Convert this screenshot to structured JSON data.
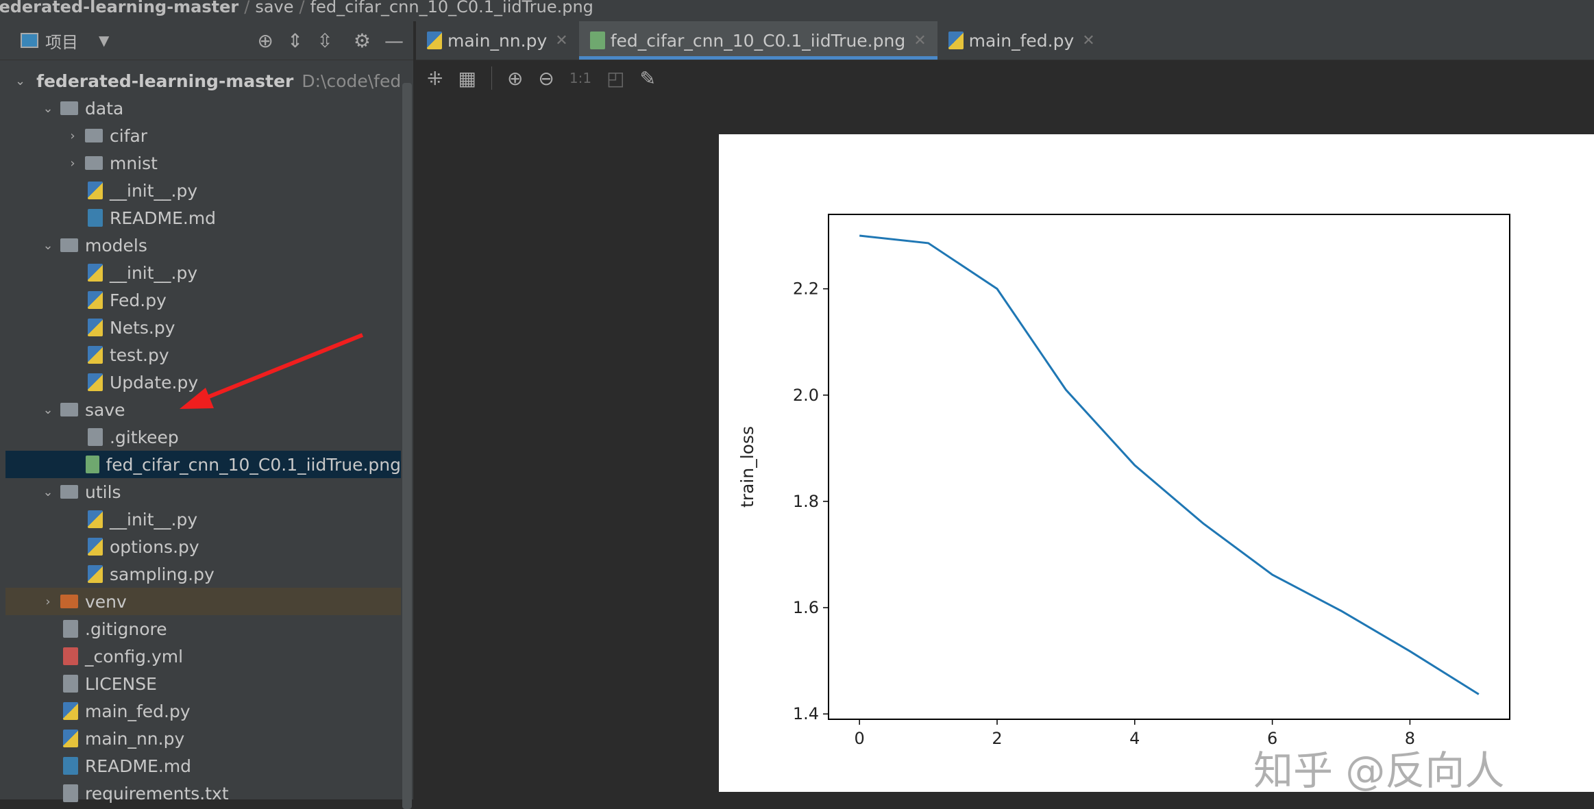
{
  "breadcrumb": [
    "federated-learning-master",
    "save",
    "fed_cifar_cnn_10_C0.1_iidTrue.png"
  ],
  "sidebar": {
    "title": "项目",
    "root_path": "D:\\code\\federat",
    "items": [
      {
        "label": "federated-learning-master",
        "level": 0,
        "type": "folder",
        "open": true
      },
      {
        "label": "data",
        "level": 1,
        "type": "folder",
        "open": true
      },
      {
        "label": "cifar",
        "level": 2,
        "type": "folder",
        "open": false
      },
      {
        "label": "mnist",
        "level": 2,
        "type": "folder",
        "open": false
      },
      {
        "label": "__init__.py",
        "level": 2,
        "type": "py"
      },
      {
        "label": "README.md",
        "level": 2,
        "type": "md"
      },
      {
        "label": "models",
        "level": 1,
        "type": "folder",
        "open": true
      },
      {
        "label": "__init__.py",
        "level": 2,
        "type": "py"
      },
      {
        "label": "Fed.py",
        "level": 2,
        "type": "py"
      },
      {
        "label": "Nets.py",
        "level": 2,
        "type": "py"
      },
      {
        "label": "test.py",
        "level": 2,
        "type": "py"
      },
      {
        "label": "Update.py",
        "level": 2,
        "type": "py"
      },
      {
        "label": "save",
        "level": 1,
        "type": "folder",
        "open": true
      },
      {
        "label": ".gitkeep",
        "level": 2,
        "type": "txt"
      },
      {
        "label": "fed_cifar_cnn_10_C0.1_iidTrue.png",
        "level": 2,
        "type": "img",
        "selected": true
      },
      {
        "label": "utils",
        "level": 1,
        "type": "folder",
        "open": true
      },
      {
        "label": "__init__.py",
        "level": 2,
        "type": "py"
      },
      {
        "label": "options.py",
        "level": 2,
        "type": "py"
      },
      {
        "label": "sampling.py",
        "level": 2,
        "type": "py"
      },
      {
        "label": "venv",
        "level": 1,
        "type": "folder-excluded",
        "open": false
      },
      {
        "label": ".gitignore",
        "level": 1,
        "type": "txt"
      },
      {
        "label": "_config.yml",
        "level": 1,
        "type": "yml"
      },
      {
        "label": "LICENSE",
        "level": 1,
        "type": "txt"
      },
      {
        "label": "main_fed.py",
        "level": 1,
        "type": "py"
      },
      {
        "label": "main_nn.py",
        "level": 1,
        "type": "py"
      },
      {
        "label": "README.md",
        "level": 1,
        "type": "md"
      },
      {
        "label": "requirements.txt",
        "level": 1,
        "type": "txt"
      }
    ]
  },
  "tabs": [
    {
      "label": "main_nn.py",
      "icon": "python-file-icon"
    },
    {
      "label": "fed_cifar_cnn_10_C0.1_iidTrue.png",
      "icon": "image-file-icon",
      "active": true
    },
    {
      "label": "main_fed.py",
      "icon": "python-file-icon"
    }
  ],
  "toolbar": {
    "actual_size": "1:1"
  },
  "watermark": "知乎 @反向人",
  "chart_data": {
    "type": "line",
    "title": "",
    "xlabel": "",
    "ylabel": "train_loss",
    "x": [
      0,
      1,
      2,
      3,
      4,
      5,
      6,
      7,
      8,
      9
    ],
    "series": [
      {
        "values": [
          2.3,
          2.286,
          2.2,
          2.01,
          1.868,
          1.758,
          1.662,
          1.594,
          1.518,
          1.437
        ],
        "color": "#1f77b4"
      }
    ],
    "xticks": [
      "0",
      "2",
      "4",
      "6",
      "8"
    ],
    "xtick_values": [
      0,
      2,
      4,
      6,
      8
    ],
    "yticks": [
      "1.4",
      "1.6",
      "1.8",
      "2.0",
      "2.2"
    ],
    "ytick_values": [
      1.4,
      1.6,
      1.8,
      2.0,
      2.2
    ],
    "xlim": [
      -0.45,
      9.45
    ],
    "ylim": [
      1.39,
      2.34
    ],
    "grid": false
  }
}
